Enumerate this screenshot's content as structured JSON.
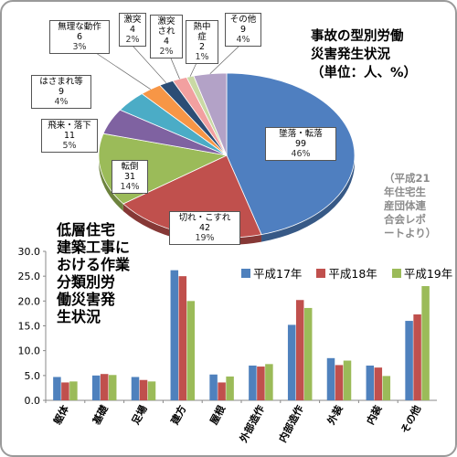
{
  "pie_title": "事故の型別労働\n災害発生状況\n（単位：人、%）",
  "pie_source": "（平成21\n年住宅生\n産団体連\n合会レポ\nートより）",
  "bar_title": "低層住宅\n建築工事に\nおける作業\n分類別労\n働災害発\n生状況",
  "chart_data": [
    {
      "type": "pie",
      "title": "事故の型別労働災害発生状況（単位：人、%）",
      "slices": [
        {
          "name": "墜落・転落",
          "value": 99,
          "percent": "46%",
          "color": "#4f7fc0"
        },
        {
          "name": "切れ・こすれ",
          "value": 42,
          "percent": "19%",
          "color": "#c0504d"
        },
        {
          "name": "転倒",
          "value": 31,
          "percent": "14%",
          "color": "#9bbb59"
        },
        {
          "name": "飛来・落下",
          "value": 11,
          "percent": "5%",
          "color": "#7f62a1"
        },
        {
          "name": "はさまれ等",
          "value": 9,
          "percent": "4%",
          "color": "#4bacc6"
        },
        {
          "name": "無理な動作",
          "value": 6,
          "percent": "3%",
          "color": "#f79646"
        },
        {
          "name": "激突",
          "value": 4,
          "percent": "2%",
          "color": "#2c4d75"
        },
        {
          "name": "激突され",
          "value": 4,
          "percent": "2%",
          "color": "#f2a0a0"
        },
        {
          "name": "熱中症",
          "value": 2,
          "percent": "1%",
          "color": "#c9d9a4"
        },
        {
          "name": "その他",
          "value": 9,
          "percent": "4%",
          "color": "#b3a2c7"
        }
      ]
    },
    {
      "type": "bar",
      "title": "低層住宅建築工事における作業分類別労働災害発生状況",
      "categories": [
        "躯体",
        "基礎",
        "足場",
        "建方",
        "屋根",
        "外部造作",
        "内部造作",
        "外装",
        "内装",
        "その他"
      ],
      "series": [
        {
          "name": "平成17年",
          "color": "#4f81bd",
          "values": [
            4.7,
            5.0,
            4.7,
            26.2,
            5.2,
            7.0,
            15.2,
            8.5,
            7.0,
            16.0
          ]
        },
        {
          "name": "平成18年",
          "color": "#c0504d",
          "values": [
            3.6,
            5.3,
            4.1,
            25.0,
            3.6,
            6.8,
            20.2,
            7.1,
            6.6,
            17.3
          ]
        },
        {
          "name": "平成19年",
          "color": "#9bbb59",
          "values": [
            3.8,
            5.1,
            3.8,
            20.0,
            4.8,
            7.3,
            18.6,
            8.0,
            4.9,
            23.0
          ]
        }
      ],
      "ylim": [
        0,
        30
      ],
      "yticks": [
        "0.0",
        "5.0",
        "10.0",
        "15.0",
        "20.0",
        "25.0",
        "30.0"
      ],
      "grid": false
    }
  ]
}
